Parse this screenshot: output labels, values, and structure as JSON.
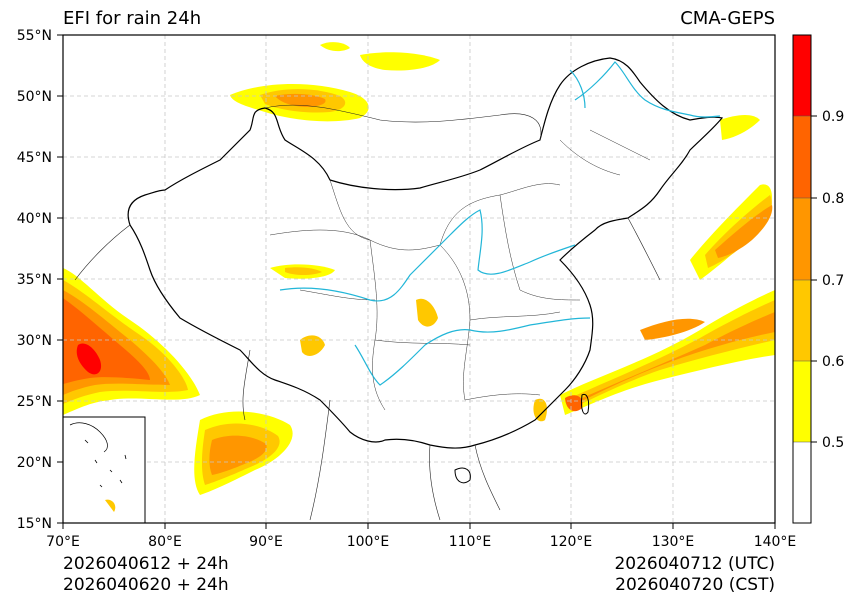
{
  "title": {
    "left": "EFI for rain 24h",
    "right": "CMA-GEPS"
  },
  "footer": {
    "left_line1": "2026040612 + 24h",
    "left_line2": "2026040620 + 24h",
    "right_line1": "2026040712 (UTC)",
    "right_line2": "2026040720 (CST)"
  },
  "map": {
    "lon_range": [
      70,
      140
    ],
    "lat_range": [
      15,
      55
    ],
    "lon_ticks": [
      "70°E",
      "80°E",
      "90°E",
      "100°E",
      "110°E",
      "120°E",
      "130°E",
      "140°E"
    ],
    "lat_ticks": [
      "15°N",
      "20°N",
      "25°N",
      "30°N",
      "35°N",
      "40°N",
      "45°N",
      "50°N",
      "55°N"
    ],
    "grid": true,
    "river_color": "#22b6d8",
    "border_color": "#000000"
  },
  "colorbar": {
    "levels": [
      0.5,
      0.6,
      0.7,
      0.8,
      0.9
    ],
    "labels": [
      "0.5",
      "0.6",
      "0.7",
      "0.8",
      "0.9"
    ],
    "colors": [
      "#ffffff",
      "#ffff00",
      "#ffc800",
      "#ff9600",
      "#ff6400",
      "#ff0000"
    ]
  }
}
